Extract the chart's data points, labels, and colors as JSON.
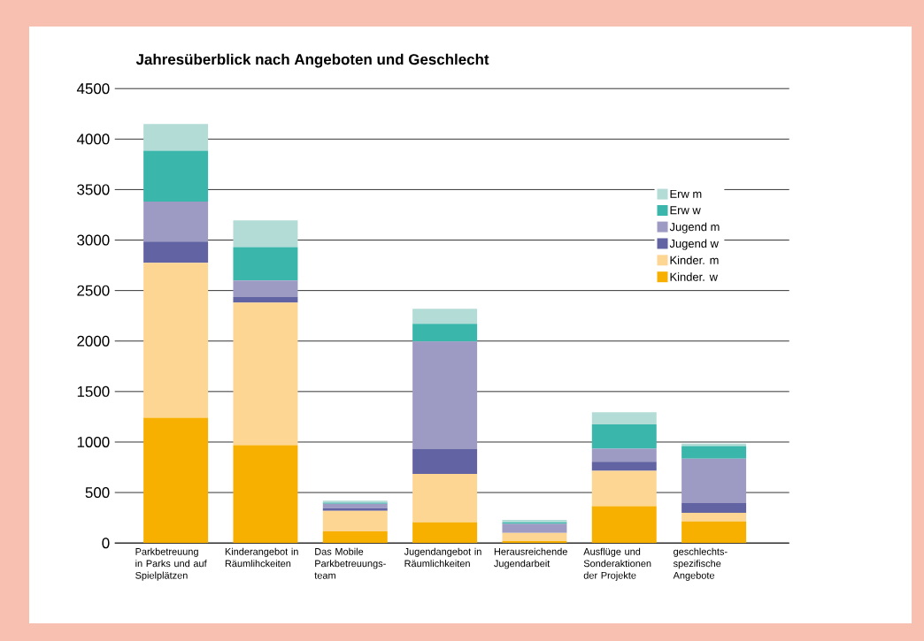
{
  "chart_data": {
    "type": "bar",
    "title": "Jahresüberblick nach Angeboten und Geschlecht",
    "categories": [
      "Parkbetreuung in Parks und auf Spielplätzen",
      "Kinderangebot in Räumlihckeiten",
      "Das Mobile Parkbetreuungs-team",
      "Jugendangebot in Räumlichkeiten",
      "Herausreichende Jugendarbeit",
      "Ausflüge und Sonderaktionen der Projekte",
      "geschlechts-spezifische Angebote"
    ],
    "stacked": true,
    "series": [
      {
        "name": "Kinder. w",
        "color": "#f8b000",
        "values": [
          1240,
          970,
          115,
          205,
          20,
          365,
          215
        ]
      },
      {
        "name": "Kinder. m",
        "color": "#fdd694",
        "values": [
          1535,
          1410,
          205,
          480,
          80,
          350,
          85
        ]
      },
      {
        "name": "Jugend w",
        "color": "#6163a3",
        "values": [
          210,
          55,
          25,
          245,
          0,
          90,
          95
        ]
      },
      {
        "name": "Jugend m",
        "color": "#9d9ac4",
        "values": [
          395,
          165,
          45,
          1065,
          90,
          130,
          440
        ]
      },
      {
        "name": "Erw w",
        "color": "#3bb6aa",
        "values": [
          505,
          330,
          10,
          175,
          15,
          240,
          125
        ]
      },
      {
        "name": "Erw m",
        "color": "#b4dcd6",
        "values": [
          265,
          265,
          20,
          150,
          25,
          120,
          25
        ]
      }
    ],
    "ylim": [
      0,
      4500
    ],
    "yticks": [
      0,
      500,
      1000,
      1500,
      2000,
      2500,
      3000,
      3500,
      4000,
      4500
    ],
    "grid": "y",
    "legend": "right"
  }
}
